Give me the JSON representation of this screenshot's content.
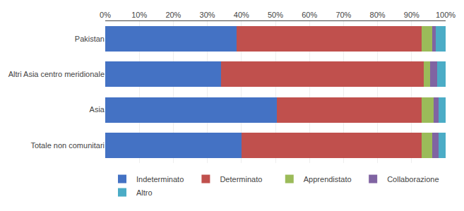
{
  "chart_data": {
    "type": "bar",
    "orientation": "horizontal",
    "stacked": true,
    "categories": [
      "Pakistan",
      "Altri Asia centro meridionale",
      "Asia",
      "Totale non comunitari"
    ],
    "series": [
      {
        "name": "Indeterminato",
        "color": "#4472C4",
        "values": [
          38.5,
          34.0,
          50.5,
          40.0
        ]
      },
      {
        "name": "Determinato",
        "color": "#C0504D",
        "values": [
          54.5,
          59.5,
          42.5,
          53.0
        ]
      },
      {
        "name": "Apprendistato",
        "color": "#9BBB59",
        "values": [
          3.0,
          2.0,
          3.5,
          3.0
        ]
      },
      {
        "name": "Collaborazione",
        "color": "#8064A2",
        "values": [
          1.0,
          2.0,
          1.5,
          2.0
        ]
      },
      {
        "name": "Altro",
        "color": "#4BACC6",
        "values": [
          3.0,
          2.5,
          2.0,
          2.0
        ]
      }
    ],
    "xlim": [
      0,
      100
    ],
    "xticks": [
      {
        "value": 0,
        "label": "0%"
      },
      {
        "value": 10,
        "label": "10%"
      },
      {
        "value": 20,
        "label": "20%"
      },
      {
        "value": 30,
        "label": "30%"
      },
      {
        "value": 40,
        "label": "40%"
      },
      {
        "value": 50,
        "label": "50%"
      },
      {
        "value": 60,
        "label": "60%"
      },
      {
        "value": 70,
        "label": "70%"
      },
      {
        "value": 80,
        "label": "80%"
      },
      {
        "value": 90,
        "label": "90%"
      },
      {
        "value": 100,
        "label": "100%"
      }
    ],
    "grid": true,
    "legend": "bottom"
  }
}
